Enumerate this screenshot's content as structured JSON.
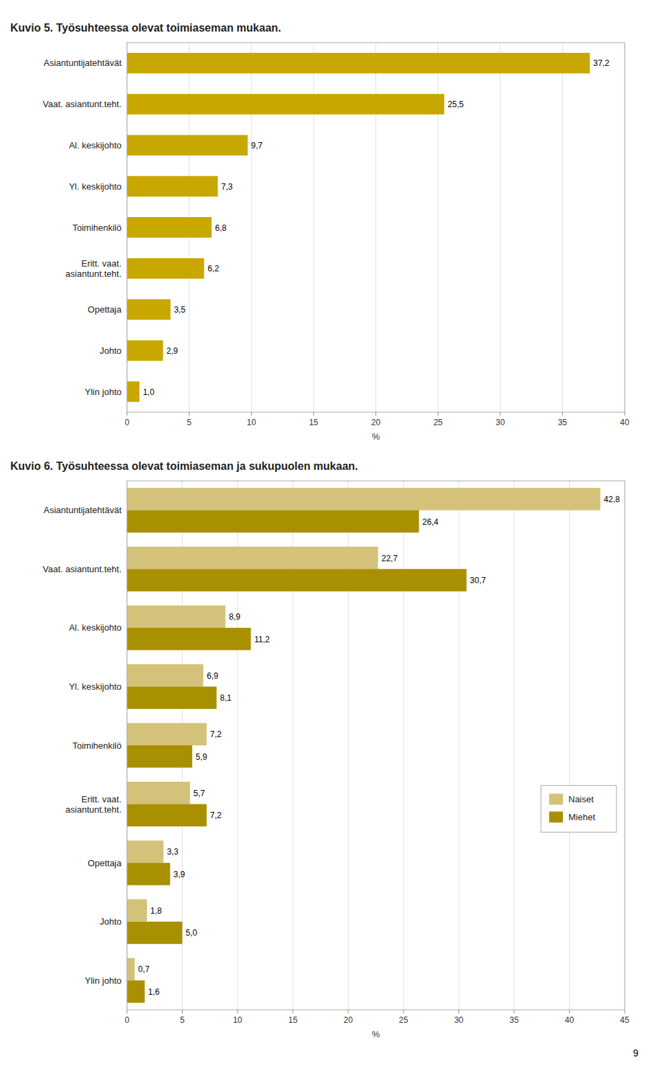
{
  "chart_data": [
    {
      "type": "bar",
      "orientation": "horizontal",
      "title": "Kuvio 5. Työsuhteessa olevat toimiaseman mukaan.",
      "categories": [
        "Asiantuntijatehtävät",
        "Vaat. asiantunt.teht.",
        "Al. keskijohto",
        "Yl. keskijohto",
        "Toimihenkilö",
        "Eritt. vaat.\nasiantunt.teht.",
        "Opettaja",
        "Johto",
        "Ylin johto"
      ],
      "values": [
        37.2,
        25.5,
        9.7,
        7.3,
        6.8,
        6.2,
        3.5,
        2.9,
        1.0
      ],
      "value_labels": [
        "37,2",
        "25,5",
        "9,7",
        "7,3",
        "6,8",
        "6,2",
        "3,5",
        "2,9",
        "1,0"
      ],
      "color": "#C8A800",
      "xlabel": "%",
      "xlim": [
        0,
        40
      ],
      "xticks": [
        0,
        5,
        10,
        15,
        20,
        25,
        30,
        35,
        40
      ],
      "grid": true,
      "data_labels": true
    },
    {
      "type": "bar",
      "orientation": "horizontal",
      "title": "Kuvio 6. Työsuhteessa olevat toimiaseman ja sukupuolen mukaan.",
      "categories": [
        "Asiantuntijatehtävät",
        "Vaat. asiantunt.teht.",
        "Al. keskijohto",
        "Yl. keskijohto",
        "Toimihenkilö",
        "Eritt. vaat.\nasiantunt.teht.",
        "Opettaja",
        "Johto",
        "Ylin johto"
      ],
      "series": [
        {
          "name": "Naiset",
          "color": "#D4C27A",
          "values": [
            42.8,
            22.7,
            8.9,
            6.9,
            7.2,
            5.7,
            3.3,
            1.8,
            0.7
          ],
          "value_labels": [
            "42,8",
            "22,7",
            "8,9",
            "6,9",
            "7,2",
            "5,7",
            "3,3",
            "1,8",
            "0,7"
          ]
        },
        {
          "name": "Miehet",
          "color": "#A89000",
          "values": [
            26.4,
            30.7,
            11.2,
            8.1,
            5.9,
            7.2,
            3.9,
            5.0,
            1.6
          ],
          "value_labels": [
            "26,4",
            "30,7",
            "11,2",
            "8,1",
            "5,9",
            "7,2",
            "3,9",
            "5,0",
            "1,6"
          ]
        }
      ],
      "xlabel": "%",
      "xlim": [
        0,
        45
      ],
      "xticks": [
        0,
        5,
        10,
        15,
        20,
        25,
        30,
        35,
        40,
        45
      ],
      "grid": true,
      "legend": "right",
      "data_labels": true,
      "annotation": "9"
    }
  ]
}
